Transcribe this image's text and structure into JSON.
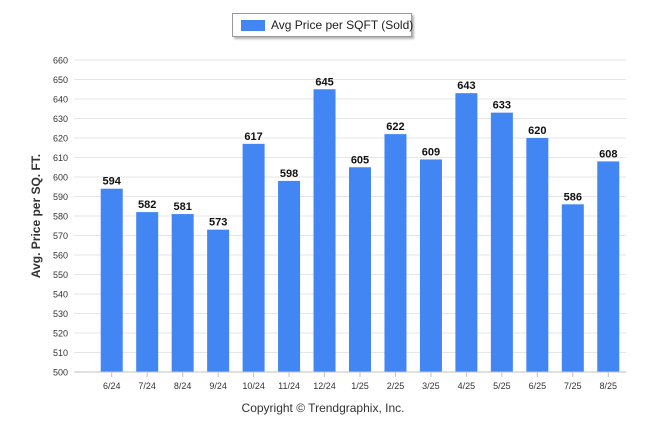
{
  "legend": {
    "label": "Avg Price per SQFT (Sold)"
  },
  "footer": {
    "copyright": "Copyright © Trendgraphix, Inc."
  },
  "colors": {
    "bar": "#4286f4",
    "grid": "#e6e6e6",
    "axis": "#c0c0c0",
    "text": "#333333"
  },
  "chart_data": {
    "type": "bar",
    "title": "",
    "xlabel": "",
    "ylabel": "Avg. Price per SQ. FT.",
    "ylim": [
      500,
      660
    ],
    "ytick_step": 10,
    "grid": true,
    "legend_position": "top",
    "categories": [
      "6/24",
      "7/24",
      "8/24",
      "9/24",
      "10/24",
      "11/24",
      "12/24",
      "1/25",
      "2/25",
      "3/25",
      "4/25",
      "5/25",
      "6/25",
      "7/25",
      "8/25"
    ],
    "series": [
      {
        "name": "Avg Price per SQFT (Sold)",
        "values": [
          594,
          582,
          581,
          573,
          617,
          598,
          645,
          605,
          622,
          609,
          643,
          633,
          620,
          586,
          608
        ]
      }
    ]
  }
}
